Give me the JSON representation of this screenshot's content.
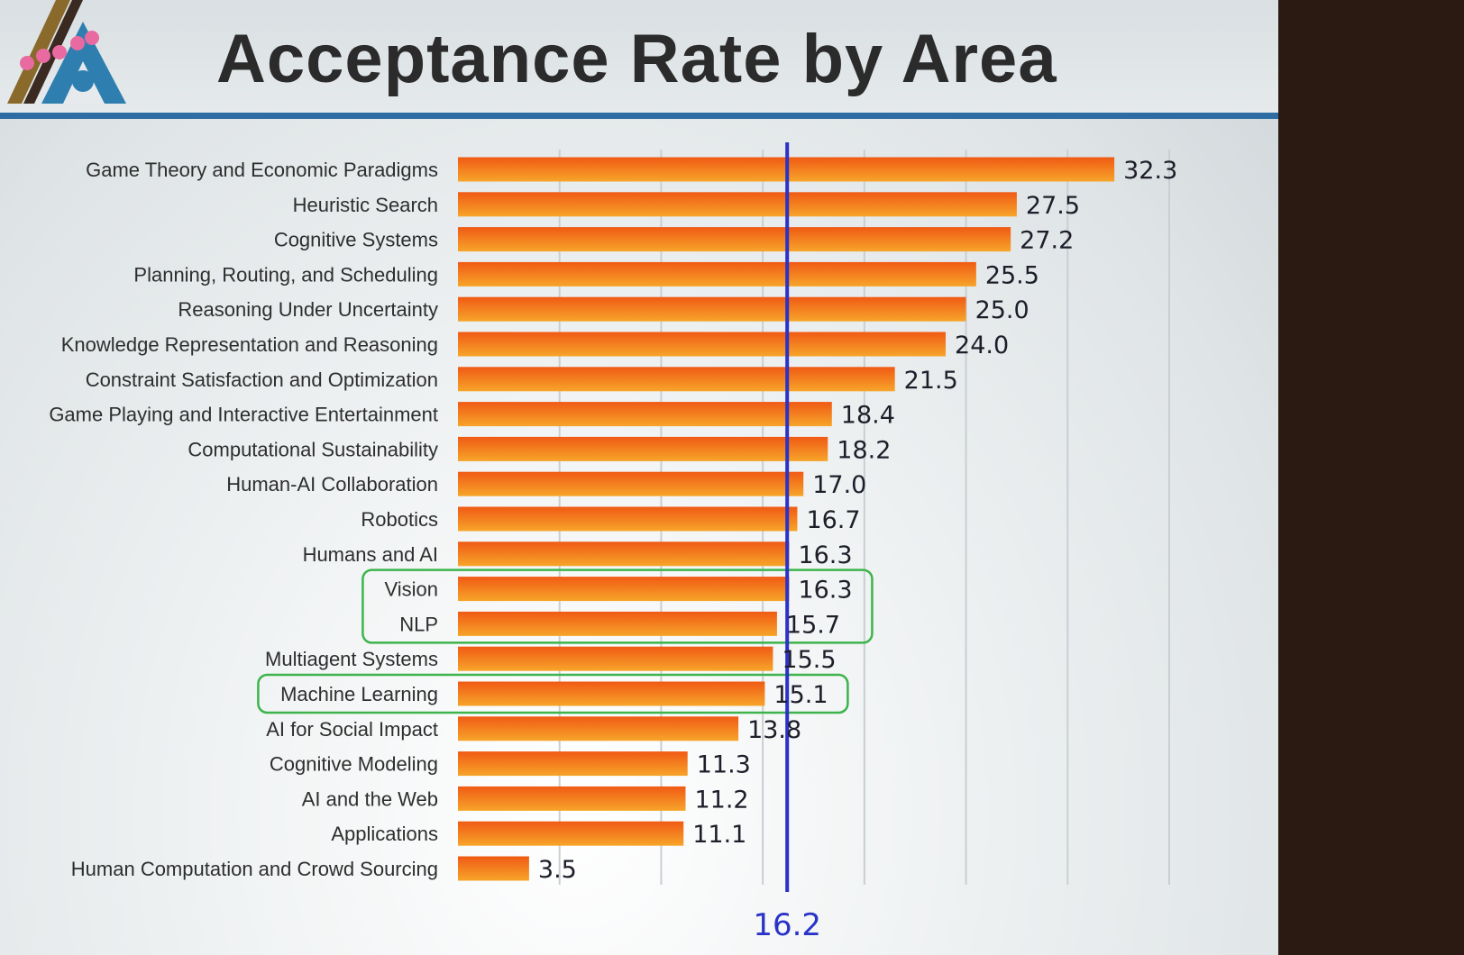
{
  "header": {
    "title": "Acceptance Rate by Area"
  },
  "logo": {
    "name": "aaai-logo"
  },
  "colors": {
    "bar_top": "#f05a14",
    "bar_bottom": "#f7a52a",
    "reference_line": "#2a32c8",
    "highlight_box": "#3cb44b",
    "header_rule": "#2e6da4"
  },
  "chart_data": {
    "type": "bar",
    "orientation": "horizontal",
    "categories": [
      "Game Theory and Economic Paradigms",
      "Heuristic Search",
      "Cognitive Systems",
      "Planning, Routing, and Scheduling",
      "Reasoning Under Uncertainty",
      "Knowledge Representation and Reasoning",
      "Constraint Satisfaction and Optimization",
      "Game Playing and Interactive Entertainment",
      "Computational Sustainability",
      "Human-AI Collaboration",
      "Robotics",
      "Humans and AI",
      "Vision",
      "NLP",
      "Multiagent Systems",
      "Machine Learning",
      "AI for Social Impact",
      "Cognitive Modeling",
      "AI and the Web",
      "Applications",
      "Human Computation and Crowd Sourcing"
    ],
    "values": [
      32.3,
      27.5,
      27.2,
      25.5,
      25.0,
      24.0,
      21.5,
      18.4,
      18.2,
      17.0,
      16.7,
      16.3,
      16.3,
      15.7,
      15.5,
      15.1,
      13.8,
      11.3,
      11.2,
      11.1,
      3.5
    ],
    "value_labels": [
      "32.3",
      "27.5",
      "27.2",
      "25.5",
      "25.0",
      "24.0",
      "21.5",
      "18.4",
      "18.2",
      "17.0",
      "16.7",
      "16.3",
      "16.3",
      "15.7",
      "15.5",
      "15.1",
      "13.8",
      "11.3",
      "11.2",
      "11.1",
      "3.5"
    ],
    "reference_line": {
      "value": 16.2,
      "label": "16.2"
    },
    "highlight_groups": [
      [
        "Vision",
        "NLP"
      ],
      [
        "Machine Learning"
      ]
    ],
    "xlim": [
      0,
      35
    ],
    "x_gridlines": [
      5,
      10,
      15,
      20,
      25,
      30,
      35
    ],
    "grid": true,
    "legend": "none",
    "title": "Acceptance Rate by Area"
  }
}
